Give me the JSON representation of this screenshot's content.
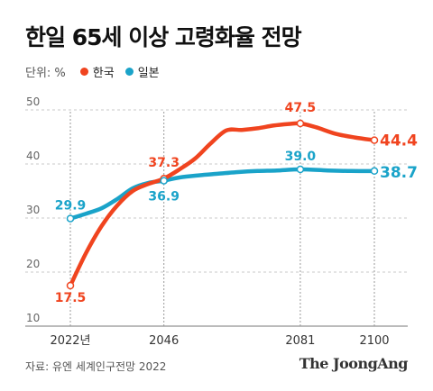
{
  "title": "한일 65세 이상 고령화율 전망",
  "legend": {
    "unit": "단위: %",
    "items": [
      {
        "label": "한국",
        "color": "#f0441f"
      },
      {
        "label": "일본",
        "color": "#1aa3c9"
      }
    ]
  },
  "source": "자료: 유엔 세계인구전망 2022",
  "brand": "The JoongAng",
  "chart_data": {
    "type": "line",
    "ylim": [
      10,
      50
    ],
    "yticks": [
      10,
      20,
      30,
      40,
      50
    ],
    "xlim": [
      2022,
      2100
    ],
    "xticks": [
      {
        "value": 2022,
        "label": "2022년"
      },
      {
        "value": 2046,
        "label": "2046"
      },
      {
        "value": 2081,
        "label": "2081"
      },
      {
        "value": 2100,
        "label": "2100"
      }
    ],
    "grid": true,
    "series": [
      {
        "name": "한국",
        "color": "#f0441f",
        "points": [
          [
            2022,
            17.5
          ],
          [
            2026,
            23.5
          ],
          [
            2030,
            28.5
          ],
          [
            2034,
            32.3
          ],
          [
            2038,
            35.0
          ],
          [
            2042,
            36.3
          ],
          [
            2046,
            37.3
          ],
          [
            2050,
            39.0
          ],
          [
            2054,
            41.0
          ],
          [
            2058,
            43.8
          ],
          [
            2062,
            46.2
          ],
          [
            2066,
            46.3
          ],
          [
            2070,
            46.6
          ],
          [
            2074,
            47.1
          ],
          [
            2078,
            47.4
          ],
          [
            2081,
            47.5
          ],
          [
            2085,
            46.8
          ],
          [
            2090,
            45.6
          ],
          [
            2095,
            44.9
          ],
          [
            2100,
            44.4
          ]
        ],
        "labels": [
          {
            "x": 2022,
            "y": 17.5,
            "text": "17.5"
          },
          {
            "x": 2046,
            "y": 37.3,
            "text": "37.3"
          },
          {
            "x": 2081,
            "y": 47.5,
            "text": "47.5"
          },
          {
            "x": 2100,
            "y": 44.4,
            "text": "44.4"
          }
        ]
      },
      {
        "name": "일본",
        "color": "#1aa3c9",
        "points": [
          [
            2022,
            29.9
          ],
          [
            2026,
            30.8
          ],
          [
            2030,
            31.8
          ],
          [
            2034,
            33.5
          ],
          [
            2038,
            35.5
          ],
          [
            2042,
            36.5
          ],
          [
            2046,
            36.9
          ],
          [
            2050,
            37.5
          ],
          [
            2055,
            37.9
          ],
          [
            2060,
            38.2
          ],
          [
            2065,
            38.5
          ],
          [
            2070,
            38.7
          ],
          [
            2075,
            38.8
          ],
          [
            2081,
            39.0
          ],
          [
            2088,
            38.8
          ],
          [
            2094,
            38.7
          ],
          [
            2100,
            38.7
          ]
        ],
        "labels": [
          {
            "x": 2022,
            "y": 29.9,
            "text": "29.9"
          },
          {
            "x": 2046,
            "y": 36.9,
            "text": "36.9"
          },
          {
            "x": 2081,
            "y": 39.0,
            "text": "39.0"
          },
          {
            "x": 2100,
            "y": 38.7,
            "text": "38.7"
          }
        ]
      }
    ]
  }
}
